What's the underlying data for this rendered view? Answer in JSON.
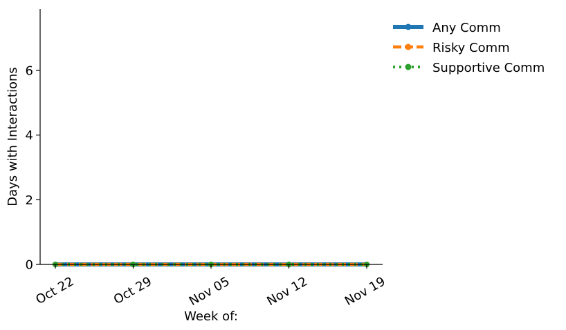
{
  "chart_data": {
    "type": "line",
    "title": "",
    "xlabel": "Week of:",
    "ylabel": "Days with Interactions",
    "x": [
      "Oct 22",
      "Oct 29",
      "Nov 05",
      "Nov 12",
      "Nov 19"
    ],
    "ylim": [
      0,
      7.9
    ],
    "yticks": [
      0,
      2,
      4,
      6
    ],
    "grid": false,
    "legend_position": "top-right, outside plot",
    "series": [
      {
        "name": "Any Comm",
        "values": [
          0,
          0,
          0,
          0,
          0
        ],
        "color": "#1f77b4",
        "line_style": "solid",
        "marker": "circle"
      },
      {
        "name": "Risky Comm",
        "values": [
          0,
          0,
          0,
          0,
          0
        ],
        "color": "#ff7f0e",
        "line_style": "dashed",
        "marker": "circle"
      },
      {
        "name": "Supportive Comm",
        "values": [
          0,
          0,
          0,
          0,
          0
        ],
        "color": "#2ca02c",
        "line_style": "dotted",
        "marker": "circle"
      }
    ]
  }
}
